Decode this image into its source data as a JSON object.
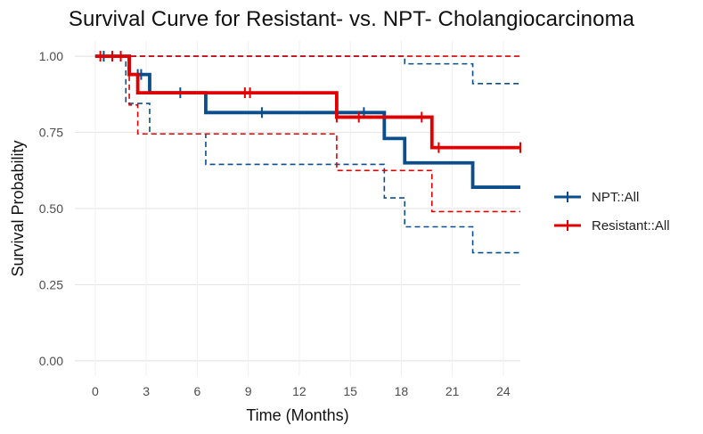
{
  "chart_data": {
    "type": "line",
    "subtype": "kaplan-meier step",
    "title": "Survival Curve for Resistant- vs. NPT- Cholangiocarcinoma",
    "xlabel": "Time (Months)",
    "ylabel": "Survival Probability",
    "xlim": [
      -1.2,
      25
    ],
    "ylim": [
      -0.05,
      1.05
    ],
    "xticks": [
      0,
      3,
      6,
      9,
      12,
      15,
      18,
      21,
      24
    ],
    "yticks": [
      0.0,
      0.25,
      0.5,
      0.75,
      1.0
    ],
    "xtick_labels": [
      "0",
      "3",
      "6",
      "9",
      "12",
      "15",
      "18",
      "21",
      "24"
    ],
    "ytick_labels": [
      "0.00",
      "0.25",
      "0.50",
      "0.75",
      "1.00"
    ],
    "grid": true,
    "legend_position": "right",
    "series": [
      {
        "name": "NPT::All",
        "color": "#0b4e8c",
        "steps": [
          [
            0,
            1.0
          ],
          [
            2.0,
            0.94
          ],
          [
            3.2,
            0.88
          ],
          [
            6.5,
            0.815
          ],
          [
            17.0,
            0.73
          ],
          [
            18.2,
            0.65
          ],
          [
            22.2,
            0.57
          ],
          [
            25,
            0.57
          ]
        ],
        "censor_times": [
          0.5,
          2.5,
          2.7,
          5.0,
          9.8,
          14.2,
          15.8
        ],
        "ci_upper": [
          [
            0,
            1.0
          ],
          [
            18.2,
            0.975
          ],
          [
            22.2,
            0.91
          ],
          [
            25,
            0.91
          ]
        ],
        "ci_lower": [
          [
            0,
            1.0
          ],
          [
            1.8,
            0.845
          ],
          [
            3.2,
            0.745
          ],
          [
            6.5,
            0.645
          ],
          [
            17.0,
            0.535
          ],
          [
            18.2,
            0.44
          ],
          [
            22.2,
            0.355
          ],
          [
            25,
            0.355
          ]
        ]
      },
      {
        "name": "Resistant::All",
        "color": "#e00000",
        "steps": [
          [
            0,
            1.0
          ],
          [
            2.0,
            0.94
          ],
          [
            2.5,
            0.88
          ],
          [
            14.2,
            0.8
          ],
          [
            19.8,
            0.7
          ],
          [
            25,
            0.7
          ]
        ],
        "censor_times": [
          0.3,
          1.0,
          1.5,
          8.8,
          9.1,
          14.2,
          15.5,
          19.2,
          20.2,
          25
        ],
        "ci_upper": [
          [
            0,
            1.0
          ],
          [
            25,
            1.0
          ]
        ],
        "ci_lower": [
          [
            0,
            1.0
          ],
          [
            2.0,
            0.84
          ],
          [
            2.5,
            0.745
          ],
          [
            14.2,
            0.625
          ],
          [
            19.8,
            0.49
          ],
          [
            25,
            0.49
          ]
        ]
      }
    ]
  }
}
